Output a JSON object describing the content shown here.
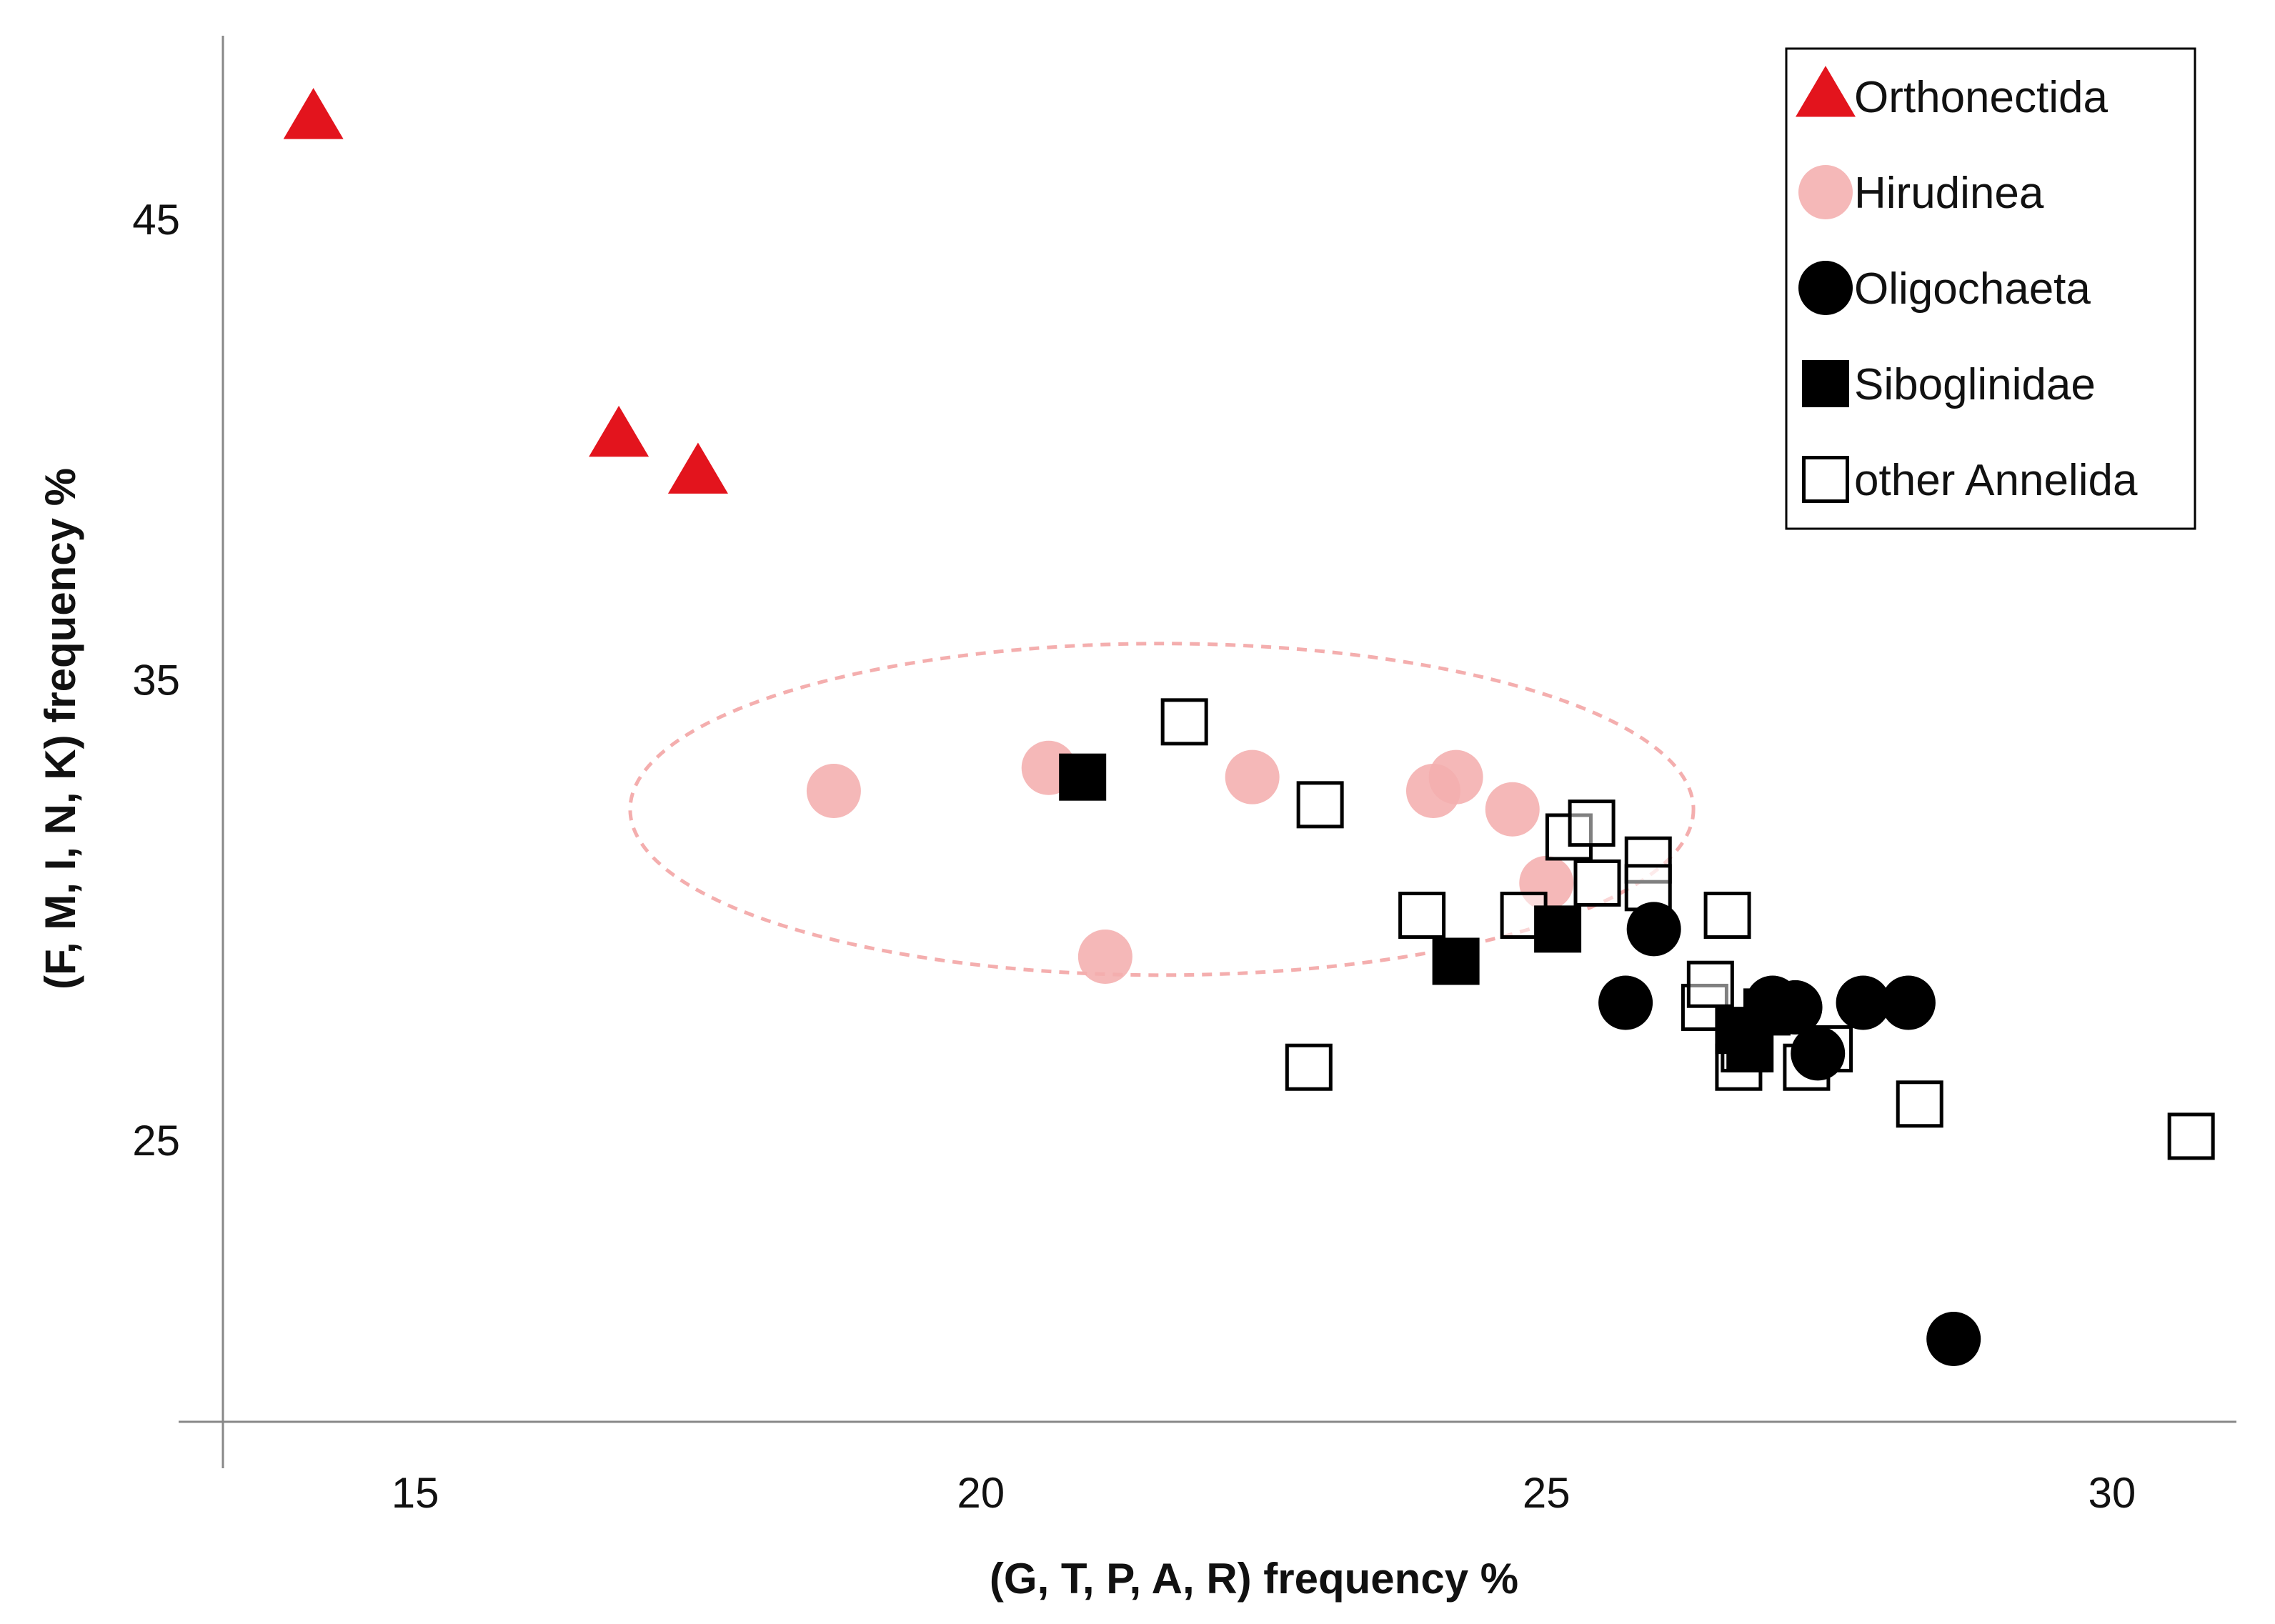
{
  "chart_data": {
    "type": "scatter",
    "title": "",
    "xlabel": "(G, T, P, A, R) frequency %",
    "ylabel": "(F, M, I, N, K) frequency %",
    "xlim": [
      13.3,
      31.1
    ],
    "ylim": [
      18.9,
      49.0
    ],
    "xticks": [
      15,
      20,
      25,
      30
    ],
    "yticks": [
      25,
      35,
      45
    ],
    "grid": false,
    "legend_position": "top-right",
    "colors": {
      "orthonectida": "#e3141d",
      "hirudinea": "#f4aeae",
      "black": "#000000",
      "axis": "#888888",
      "ellipse": "#f4aeae"
    },
    "series": [
      {
        "name": "Orthonectida",
        "marker": "triangle",
        "points": [
          [
            14.1,
            47.2
          ],
          [
            16.8,
            40.3
          ],
          [
            17.5,
            39.5
          ]
        ]
      },
      {
        "name": "Hirudinea",
        "marker": "circle",
        "points": [
          [
            18.7,
            32.6
          ],
          [
            20.6,
            33.1
          ],
          [
            21.1,
            29.0
          ],
          [
            22.4,
            32.9
          ],
          [
            24.0,
            32.6
          ],
          [
            24.2,
            32.9
          ],
          [
            24.7,
            32.2
          ],
          [
            25.0,
            30.6
          ]
        ]
      },
      {
        "name": "Oligochaeta",
        "marker": "circle",
        "points": [
          [
            25.7,
            28.0
          ],
          [
            25.95,
            29.6
          ],
          [
            27.0,
            28.0
          ],
          [
            27.2,
            27.9
          ],
          [
            27.4,
            26.9
          ],
          [
            27.8,
            28.0
          ],
          [
            28.2,
            28.0
          ],
          [
            28.6,
            20.7
          ]
        ]
      },
      {
        "name": "Siboglinidae",
        "marker": "square",
        "points": [
          [
            20.9,
            32.9
          ],
          [
            24.2,
            28.9
          ],
          [
            25.1,
            29.6
          ],
          [
            26.7,
            27.4
          ],
          [
            26.8,
            27.0
          ],
          [
            26.95,
            27.8
          ],
          [
            27.1,
            27.9
          ]
        ]
      },
      {
        "name": "other Annelida",
        "marker": "open-square",
        "points": [
          [
            21.8,
            34.1
          ],
          [
            22.9,
            26.6
          ],
          [
            23.0,
            32.3
          ],
          [
            23.9,
            29.9
          ],
          [
            24.8,
            29.9
          ],
          [
            25.2,
            31.6
          ],
          [
            25.4,
            31.9
          ],
          [
            25.45,
            30.6
          ],
          [
            25.9,
            31.1
          ],
          [
            25.9,
            30.5
          ],
          [
            26.4,
            27.9
          ],
          [
            26.45,
            28.4
          ],
          [
            26.6,
            29.9
          ],
          [
            26.7,
            26.6
          ],
          [
            26.75,
            27.0
          ],
          [
            27.3,
            26.6
          ],
          [
            27.5,
            27.0
          ],
          [
            28.3,
            25.8
          ],
          [
            30.7,
            25.1
          ]
        ]
      }
    ],
    "annotation": {
      "shape": "ellipse",
      "style": "dashed",
      "cx": 21.6,
      "cy": 32.2,
      "rx": 4.7,
      "ry": 3.6
    }
  }
}
